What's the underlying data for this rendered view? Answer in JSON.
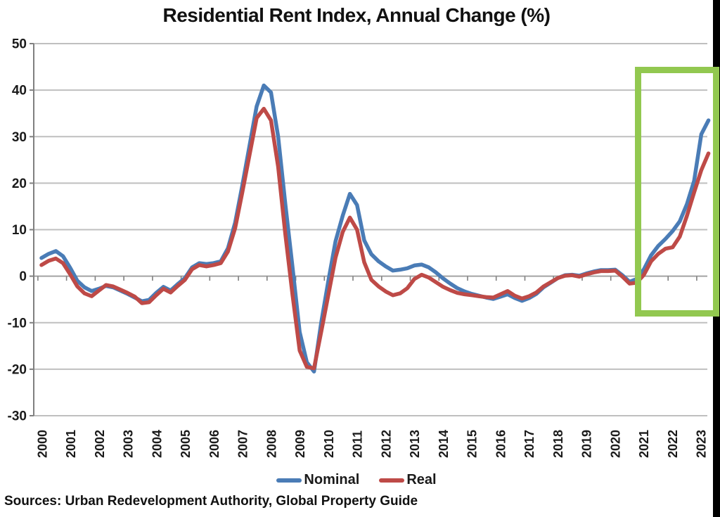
{
  "title": "Residential Rent Index, Annual Change (%)",
  "source_note": "Sources: Urban Redevelopment Authority, Global Property Guide",
  "legend": {
    "items": [
      {
        "label": "Nominal",
        "color": "#4A7CB6"
      },
      {
        "label": "Real",
        "color": "#BE4A47"
      }
    ]
  },
  "colors": {
    "nominal": "#4A7CB6",
    "real": "#BE4A47",
    "gridline": "#BFBFBF",
    "axis": "#808080",
    "zero_line": "#A3A3A3",
    "text": "#1a1a1a",
    "highlight_green": "#92C850",
    "edge_strip_black": "#000000"
  },
  "highlight_box": {
    "color": "#92C850",
    "note": "green frame around 2021-2023 surge"
  },
  "chart_data": {
    "type": "line",
    "title": "Residential Rent Index, Annual Change (%)",
    "xlabel": "",
    "ylabel": "",
    "frequency": "quarterly",
    "x_range": [
      "2000Q1",
      "2023Q2"
    ],
    "categories": [
      "2000",
      "2001",
      "2002",
      "2003",
      "2004",
      "2005",
      "2006",
      "2007",
      "2008",
      "2009",
      "2010",
      "2011",
      "2012",
      "2013",
      "2014",
      "2015",
      "2016",
      "2017",
      "2018",
      "2019",
      "2020",
      "2021",
      "2022",
      "2023"
    ],
    "y_ticks": [
      50,
      40,
      30,
      20,
      10,
      0,
      -10,
      -20,
      -30
    ],
    "ylim": [
      -30,
      50
    ],
    "grid": true,
    "legend_position": "bottom",
    "series": [
      {
        "name": "Nominal",
        "color": "#4A7CB6",
        "values": [
          3.9,
          4.8,
          5.4,
          4.3,
          1.8,
          -1.0,
          -2.4,
          -3.2,
          -2.7,
          -2.1,
          -2.4,
          -3.1,
          -3.8,
          -4.6,
          -5.4,
          -5.1,
          -3.6,
          -2.3,
          -3.1,
          -1.7,
          -0.4,
          1.9,
          2.8,
          2.6,
          2.8,
          3.2,
          6.0,
          11.5,
          19.5,
          28.0,
          36.5,
          41.0,
          39.5,
          30.0,
          15.5,
          2.0,
          -12.0,
          -18.5,
          -20.5,
          -10.0,
          -1.0,
          7.5,
          13.0,
          17.7,
          15.3,
          7.7,
          4.7,
          3.2,
          2.1,
          1.2,
          1.4,
          1.7,
          2.3,
          2.5,
          1.9,
          0.8,
          -0.5,
          -1.6,
          -2.6,
          -3.3,
          -3.8,
          -4.2,
          -4.6,
          -4.9,
          -4.4,
          -3.9,
          -4.7,
          -5.3,
          -4.7,
          -3.8,
          -2.4,
          -1.4,
          -0.4,
          0.2,
          0.3,
          0.1,
          0.6,
          1.0,
          1.3,
          1.3,
          1.4,
          0.2,
          -1.2,
          -0.6,
          1.5,
          4.5,
          6.5,
          8.0,
          9.7,
          11.8,
          15.5,
          20.5,
          30.5,
          33.5
        ]
      },
      {
        "name": "Real",
        "color": "#BE4A47",
        "values": [
          2.4,
          3.3,
          3.8,
          2.8,
          0.4,
          -2.2,
          -3.7,
          -4.3,
          -3.1,
          -1.9,
          -2.2,
          -2.9,
          -3.6,
          -4.4,
          -5.8,
          -5.6,
          -4.1,
          -2.7,
          -3.5,
          -2.1,
          -0.8,
          1.5,
          2.4,
          2.1,
          2.4,
          2.8,
          5.3,
          10.3,
          18.0,
          26.0,
          34.0,
          36.0,
          33.5,
          23.5,
          9.0,
          -4.0,
          -16.0,
          -19.5,
          -19.8,
          -12.0,
          -4.0,
          4.0,
          9.5,
          12.6,
          10.0,
          3.0,
          -0.8,
          -2.2,
          -3.3,
          -4.1,
          -3.7,
          -2.6,
          -0.6,
          0.3,
          -0.3,
          -1.3,
          -2.3,
          -3.0,
          -3.6,
          -3.9,
          -4.1,
          -4.3,
          -4.5,
          -4.6,
          -3.9,
          -3.2,
          -4.2,
          -4.8,
          -4.3,
          -3.5,
          -2.2,
          -1.3,
          -0.4,
          0.1,
          0.2,
          -0.1,
          0.4,
          0.8,
          1.1,
          1.1,
          1.2,
          -0.1,
          -1.6,
          -1.4,
          0.3,
          3.2,
          4.8,
          5.9,
          6.2,
          8.5,
          13.0,
          18.0,
          22.8,
          26.4
        ]
      }
    ],
    "annotations": [
      {
        "type": "rect_highlight",
        "years": "2021-2023",
        "color": "#92C850"
      }
    ]
  }
}
